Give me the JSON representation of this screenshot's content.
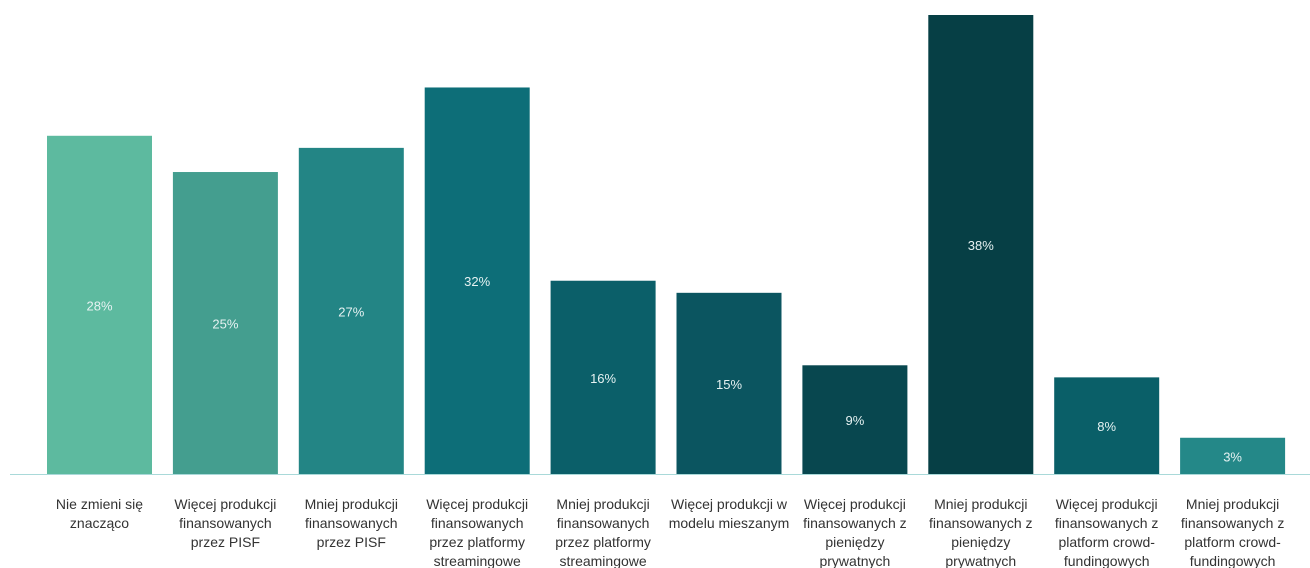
{
  "chart_data": {
    "type": "bar",
    "categories": [
      "Nie zmieni się znacząco",
      "Więcej produkcji finansowanych przez PISF",
      "Mniej produkcji finansowanych przez PISF",
      "Więcej produkcji finansowanych przez platformy streamingowe",
      "Mniej produkcji finansowanych przez platformy streamingowe",
      "Więcej produkcji w modelu mieszanym",
      "Więcej produkcji finansowanych z pieniędzy prywatnych",
      "Mniej produkcji finansowanych z pieniędzy prywatnych",
      "Więcej produkcji finansowanych z platform crowd-fundingowych",
      "Mniej produkcji finansowanych z platform crowd-fundingowych"
    ],
    "values": [
      28,
      25,
      27,
      32,
      16,
      15,
      9,
      38,
      8,
      3
    ],
    "value_labels": [
      "28%",
      "25%",
      "27%",
      "32%",
      "16%",
      "15%",
      "9%",
      "38%",
      "8%",
      "3%"
    ],
    "colors": [
      "#5dba9f",
      "#449e8f",
      "#238585",
      "#0d6e78",
      "#0b5f69",
      "#0b5560",
      "#08474f",
      "#063f45",
      "#0a5f68",
      "#248888"
    ]
  }
}
